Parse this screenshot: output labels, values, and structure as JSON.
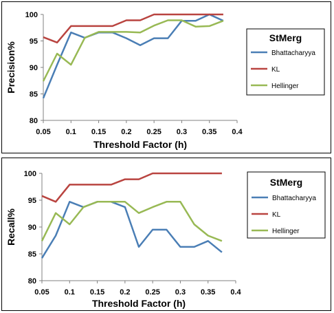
{
  "colors": {
    "Bhattacharyya": "#4a7eb5",
    "KL": "#b94440",
    "Hellinger": "#98b954"
  },
  "chart_data": [
    {
      "type": "line",
      "xlabel": "Threshold Factor (h)",
      "ylabel": "Precision%",
      "xlim": [
        0.05,
        0.4
      ],
      "ylim": [
        80,
        100
      ],
      "xticks": [
        "0.05",
        "0.1",
        "0.15",
        "0.2",
        "0.25",
        "0.3",
        "0.35",
        "0.4"
      ],
      "yticks": [
        "80",
        "85",
        "90",
        "95",
        "100"
      ],
      "grid": false,
      "legend_title": "StMerg",
      "legend_position": "right",
      "x": [
        0.05,
        0.075,
        0.1,
        0.125,
        0.15,
        0.175,
        0.2,
        0.225,
        0.25,
        0.275,
        0.3,
        0.325,
        0.35,
        0.375
      ],
      "series": [
        {
          "name": "Bhattacharyya",
          "values": [
            84.2,
            90.5,
            96.6,
            95.6,
            96.6,
            96.6,
            95.5,
            94.2,
            95.5,
            95.5,
            98.8,
            98.8,
            100,
            98.8
          ]
        },
        {
          "name": "KL",
          "values": [
            95.7,
            94.7,
            97.8,
            97.8,
            97.8,
            97.8,
            98.9,
            98.9,
            100,
            100,
            100,
            100,
            100,
            100
          ]
        },
        {
          "name": "Hellinger",
          "values": [
            87.4,
            92.6,
            90.5,
            95.6,
            96.7,
            96.7,
            96.7,
            96.6,
            97.9,
            98.9,
            98.9,
            97.7,
            97.8,
            98.8
          ]
        }
      ]
    },
    {
      "type": "line",
      "xlabel": "Threshold Factor (h)",
      "ylabel": "Recall%",
      "xlim": [
        0.05,
        0.4
      ],
      "ylim": [
        80,
        100
      ],
      "xticks": [
        "0.05",
        "0.1",
        "0.15",
        "0.2",
        "0.25",
        "0.3",
        "0.35",
        "0.4"
      ],
      "yticks": [
        "80",
        "85",
        "90",
        "95",
        "100"
      ],
      "grid": false,
      "legend_title": "StMerg",
      "legend_position": "right",
      "x": [
        0.05,
        0.075,
        0.1,
        0.125,
        0.15,
        0.175,
        0.2,
        0.225,
        0.25,
        0.275,
        0.3,
        0.325,
        0.35,
        0.375
      ],
      "series": [
        {
          "name": "Bhattacharyya",
          "values": [
            84.2,
            88.4,
            94.7,
            93.7,
            94.7,
            94.7,
            93.7,
            86.3,
            89.5,
            89.5,
            86.3,
            86.3,
            87.4,
            85.3
          ]
        },
        {
          "name": "KL",
          "values": [
            95.8,
            94.7,
            97.9,
            97.9,
            97.9,
            97.9,
            98.9,
            98.9,
            100,
            100,
            100,
            100,
            100,
            100
          ]
        },
        {
          "name": "Hellinger",
          "values": [
            87.4,
            92.6,
            90.5,
            93.7,
            94.7,
            94.7,
            94.7,
            92.6,
            93.7,
            94.7,
            94.7,
            90.5,
            88.4,
            87.4
          ]
        }
      ]
    }
  ]
}
